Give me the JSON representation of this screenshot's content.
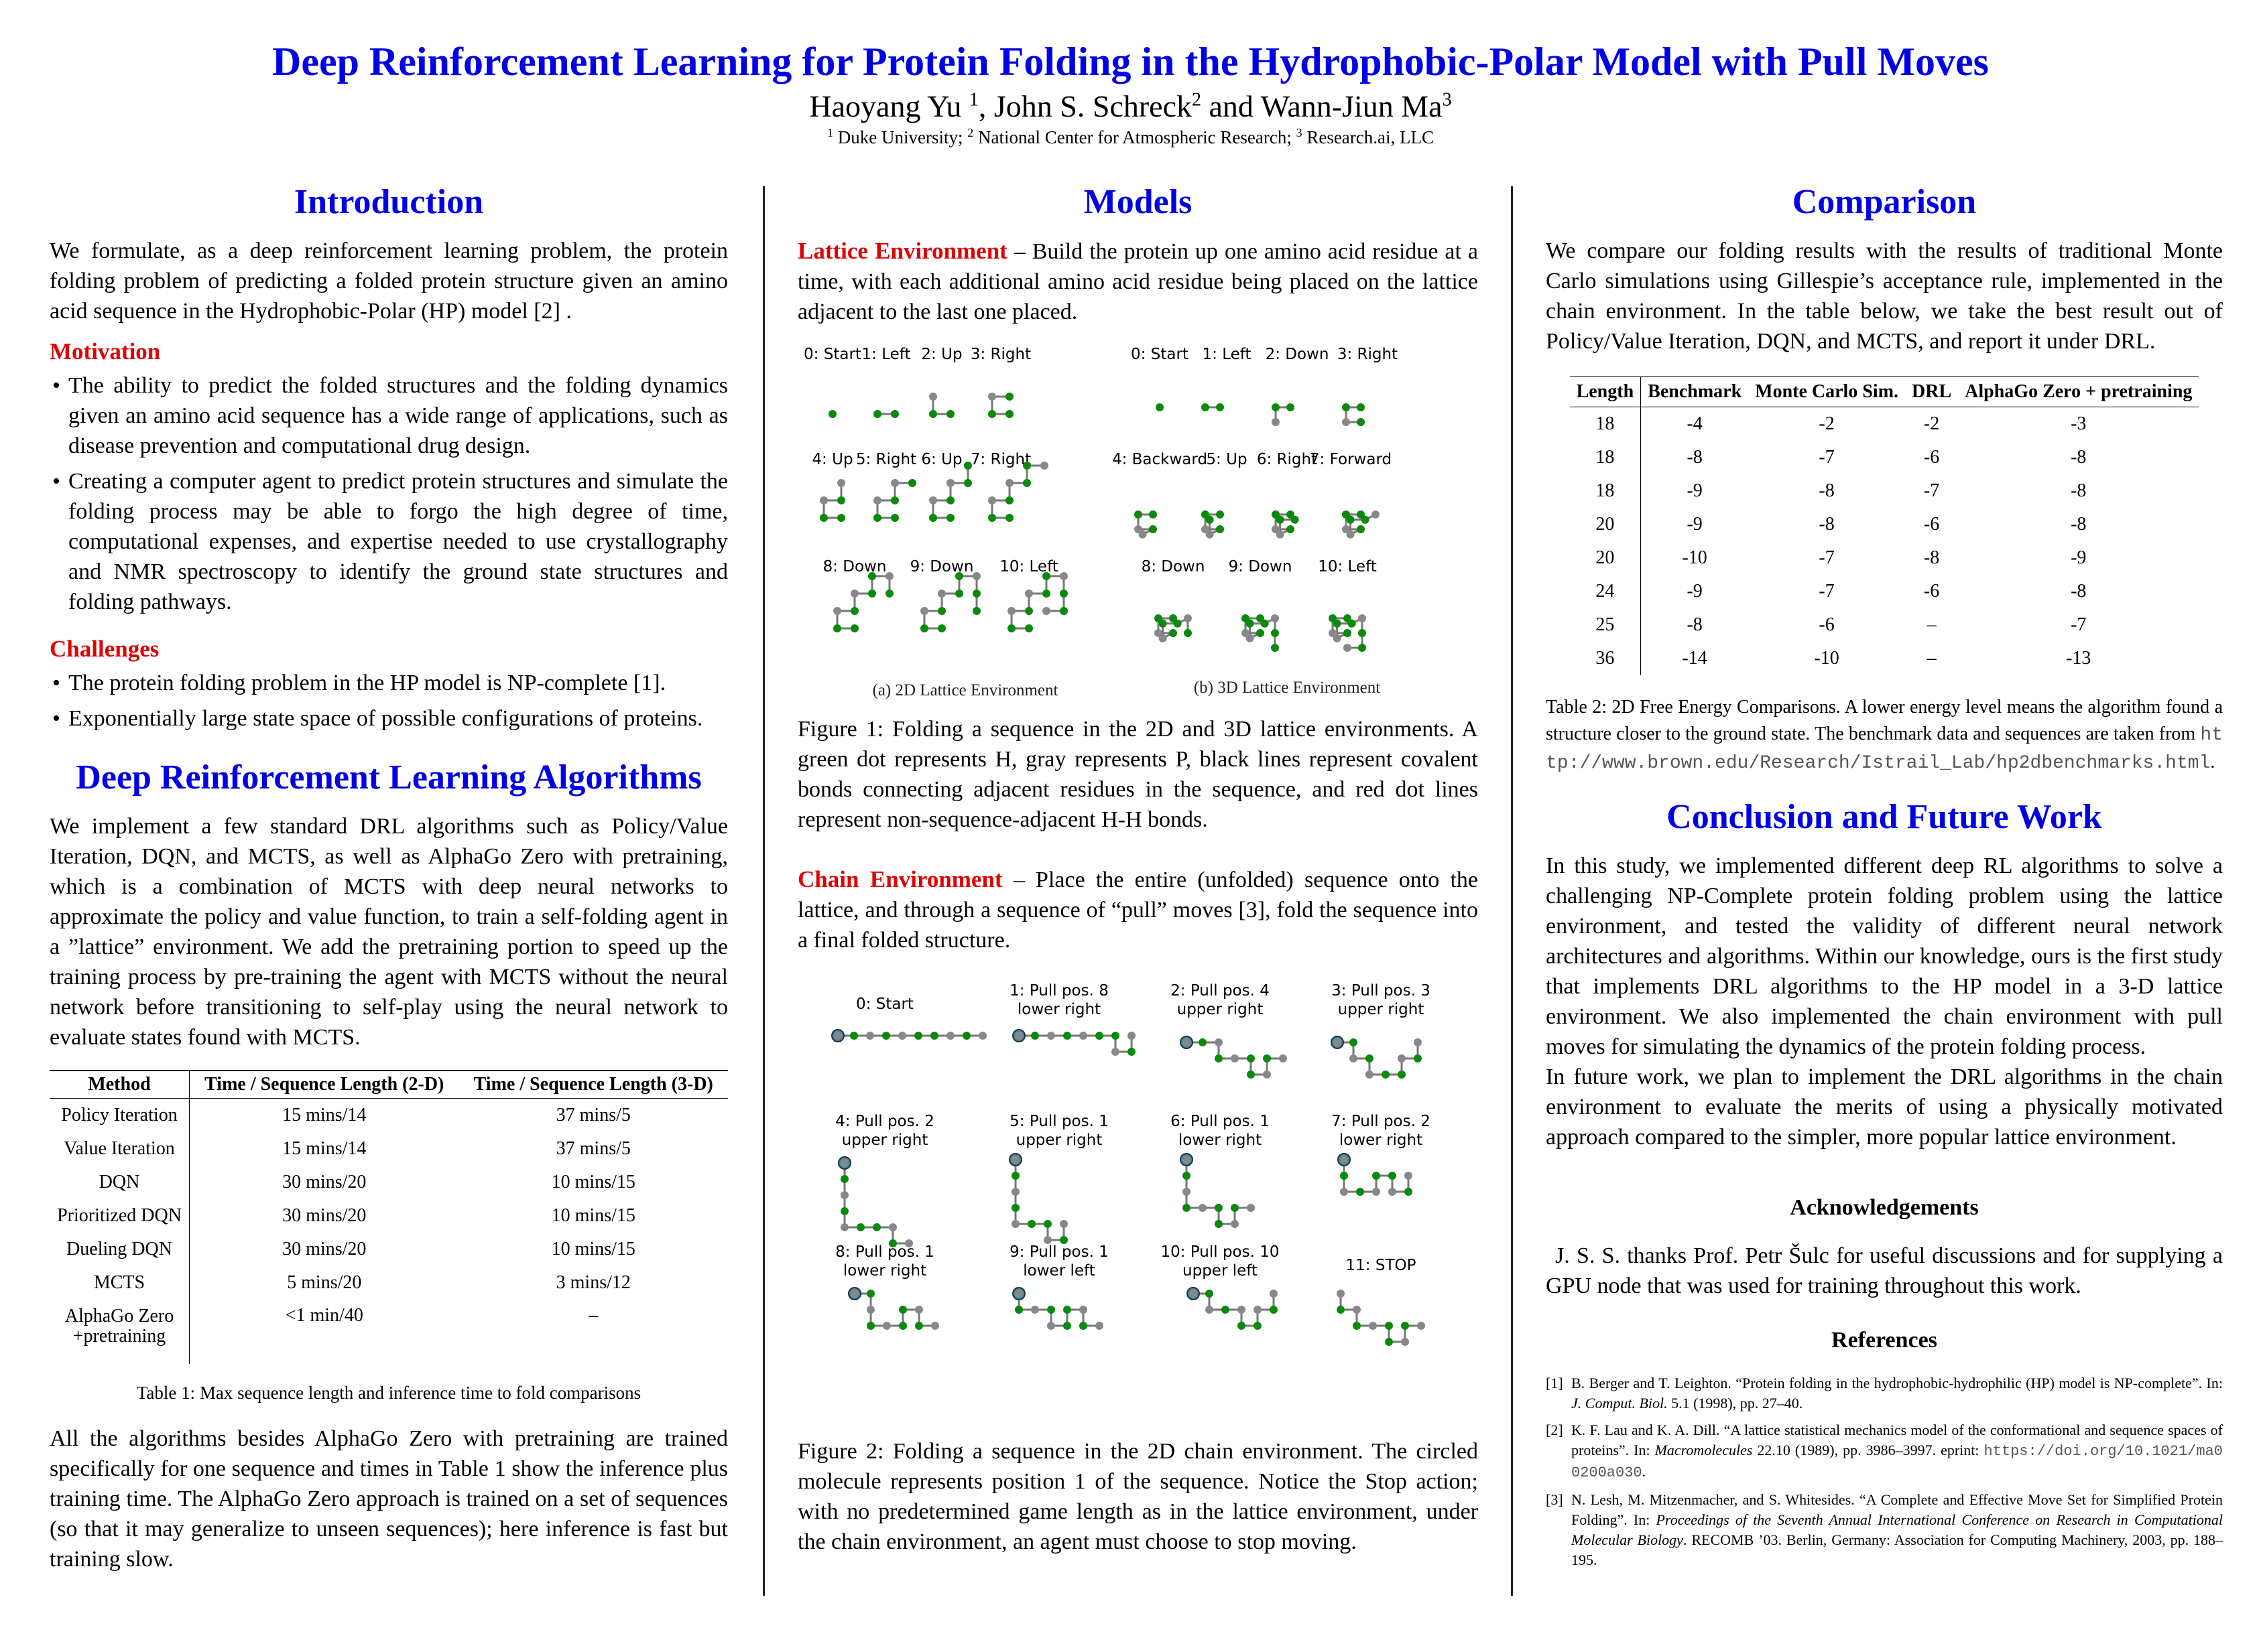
{
  "header": {
    "title": "Deep Reinforcement Learning for Protein Folding in the Hydrophobic-Polar Model with Pull Moves",
    "author1": "Haoyang Yu",
    "author2": "John S. Schreck",
    "author3": "Wann-Jiun Ma",
    "sup1": "1",
    "sup2": "2",
    "sup3": "3",
    "affil1": "Duke University;",
    "affil2": "National Center for Atmospheric Research;",
    "affil3": "Research.ai, LLC",
    "and": "and"
  },
  "intro": {
    "heading": "Introduction",
    "text": "We formulate, as a deep reinforcement learning problem, the protein folding problem of predicting a folded protein structure given an amino acid sequence in the Hydrophobic-Polar (HP) model [2] .",
    "motivation_heading": "Motivation",
    "motivation": [
      "The ability to predict the folded structures and the folding dynamics given an amino acid sequence has a wide range of applications, such as disease prevention and computational drug design.",
      "Creating a computer agent to predict protein structures and simulate the folding process may be able to forgo the high degree of time, computational expenses, and expertise needed to use crystallography and NMR spectroscopy to identify the ground state structures and folding pathways."
    ],
    "challenges_heading": "Challenges",
    "challenges": [
      "The protein folding problem in the HP model is NP-complete [1].",
      "Exponentially large state space of possible configurations of proteins."
    ]
  },
  "drl": {
    "heading": "Deep Reinforcement Learning Algorithms",
    "text": "We implement a few standard DRL algorithms such as Policy/Value Iteration, DQN, and MCTS, as well as AlphaGo Zero with pretraining, which is a combination of MCTS with deep neural networks to approximate the policy and value function, to train a self-folding agent in a ”lattice” environment. We add the pretraining portion to speed up the training process by pre-training the agent with MCTS without the neural network before transitioning to self-play using the neural network to evaluate states found with MCTS.",
    "table": {
      "headers": [
        "Method",
        "Time / Sequence Length (2-D)",
        "Time / Sequence Length (3-D)"
      ],
      "rows": [
        [
          "Policy Iteration",
          "15 mins/14",
          "37 mins/5"
        ],
        [
          "Value Iteration",
          "15 mins/14",
          "37 mins/5"
        ],
        [
          "DQN",
          "30 mins/20",
          "10 mins/15"
        ],
        [
          "Prioritized DQN",
          "30 mins/20",
          "10 mins/15"
        ],
        [
          "Dueling DQN",
          "30 mins/20",
          "10 mins/15"
        ],
        [
          "MCTS",
          "5 mins/20",
          "3 mins/12"
        ],
        [
          "AlphaGo Zero +pretraining",
          "<1 min/40",
          "–"
        ]
      ]
    },
    "table_caption": "Table 1: Max sequence length and inference time to fold comparisons",
    "text2": "All the algorithms besides AlphaGo Zero with pretraining are trained specifically for one sequence and times in Table 1 show the inference plus training time. The AlphaGo Zero approach is trained on a set of sequences (so that it may generalize to unseen sequences); here inference is fast but training slow."
  },
  "models": {
    "heading": "Models",
    "lattice_label": "Lattice Environment",
    "lattice_text": "–  Build the protein up one amino acid residue at a time, with each additional amino acid residue being placed on the lattice adjacent to the last one placed.",
    "fig1_labels_2d": [
      "0: Start",
      "1: Left",
      "2: Up",
      "3: Right",
      "4: Up",
      "5: Right",
      "6: Up",
      "7: Right",
      "8: Down",
      "9: Down",
      "10: Left"
    ],
    "fig1_labels_3d": [
      "0: Start",
      "1: Left",
      "2: Down",
      "3: Right",
      "4: Backward",
      "5: Up",
      "6: Right",
      "7: Forward",
      "8: Down",
      "9: Down",
      "10: Left"
    ],
    "fig1_sub_a": "(a) 2D Lattice Environment",
    "fig1_sub_b": "(b) 3D Lattice Environment",
    "fig1_caption": "Figure 1: Folding a sequence in the 2D and 3D lattice environments. A green dot represents H, gray represents P, black lines represent covalent bonds connecting adjacent residues in the sequence, and red dot lines represent non-sequence-adjacent H-H bonds.",
    "chain_label": "Chain Environment",
    "chain_text": "–  Place the entire (unfolded) sequence onto the lattice, and through a sequence of “pull” moves [3], fold the sequence into a final folded structure.",
    "fig2_labels": [
      [
        "0: Start"
      ],
      [
        "1: Pull pos. 8",
        "lower right"
      ],
      [
        "2: Pull pos. 4",
        "upper right"
      ],
      [
        "3: Pull pos. 3",
        "upper right"
      ],
      [
        "4: Pull pos. 2",
        "upper right"
      ],
      [
        "5: Pull pos. 1",
        "upper right"
      ],
      [
        "6: Pull pos. 1",
        "lower right"
      ],
      [
        "7: Pull pos. 2",
        "lower right"
      ],
      [
        "8: Pull pos. 1",
        "lower right"
      ],
      [
        "9: Pull pos. 1",
        "lower left"
      ],
      [
        "10: Pull pos. 10",
        "upper left"
      ],
      [
        "11: STOP"
      ]
    ],
    "fig2_caption": "Figure 2: Folding a sequence in the 2D chain environment. The circled molecule represents position 1 of the sequence. Notice the Stop action; with no predetermined game length as in the lattice environment, under the chain environment, an agent must choose to stop moving."
  },
  "comparison": {
    "heading": "Comparison",
    "text": "We compare our folding results with the results of traditional Monte Carlo simulations using Gillespie’s acceptance rule, implemented in the chain environment. In the table below, we take the best result out of Policy/Value Iteration, DQN, and MCTS, and report it under DRL.",
    "table": {
      "headers": [
        "Length",
        "Benchmark",
        "Monte Carlo Sim.",
        "DRL",
        "AlphaGo Zero + pretraining"
      ],
      "rows": [
        [
          "18",
          "-4",
          "-2",
          "-2",
          "-3"
        ],
        [
          "18",
          "-8",
          "-7",
          "-6",
          "-8"
        ],
        [
          "18",
          "-9",
          "-8",
          "-7",
          "-8"
        ],
        [
          "20",
          "-9",
          "-8",
          "-6",
          "-8"
        ],
        [
          "20",
          "-10",
          "-7",
          "-8",
          "-9"
        ],
        [
          "24",
          "-9",
          "-7",
          "-6",
          "-8"
        ],
        [
          "25",
          "-8",
          "-6",
          "–",
          "-7"
        ],
        [
          "36",
          "-14",
          "-10",
          "–",
          "-13"
        ]
      ]
    },
    "table_caption": "Table 2: 2D Free Energy Comparisons. A lower energy level means the algorithm found a structure closer to the ground state. The benchmark data and sequences are taken from",
    "table_url": "http://www.brown.edu/Research/Istrail_Lab/hp2dbenchmarks.html",
    "table_caption_end": "."
  },
  "conclusion": {
    "heading": "Conclusion and Future Work",
    "text1": "In this study, we implemented different deep RL algorithms to solve a challenging NP-Complete protein folding problem using the lattice environment, and tested the validity of different neural network architectures and algorithms. Within our knowledge, ours is the first study that implements DRL algorithms to the HP model in a 3-D lattice environment. We also implemented the chain environment with pull moves for simulating the dynamics of the protein folding process.",
    "text2": "In future work, we plan to implement the DRL algorithms in the chain environment to evaluate the merits of using a physically motivated approach compared to the simpler, more popular lattice environment."
  },
  "ack": {
    "heading": "Acknowledgements",
    "text": "J. S. S. thanks Prof. Petr Šulc for useful discussions and for supplying a GPU node that was used for training throughout this work."
  },
  "refs": {
    "heading": "References",
    "items": [
      {
        "num": "[1]",
        "a": "B. Berger and T. Leighton. “Protein folding in the hydrophobic-hydrophilic (HP) model is NP-complete”. In: ",
        "i": "J. Comput. Biol.",
        "b": " 5.1 (1998), pp. 27–40."
      },
      {
        "num": "[2]",
        "a": "K. F. Lau and K. A. Dill. “A lattice statistical mechanics model of the conformational and sequence spaces of proteins”. In: ",
        "i": "Macromolecules",
        "b": " 22.10 (1989), pp. 3986–3997. eprint: ",
        "url": "https://doi.org/10.1021/ma00200a030",
        "c": "."
      },
      {
        "num": "[3]",
        "a": "N. Lesh, M. Mitzenmacher, and S. Whitesides. “A Complete and Effective Move Set for Simplified Protein Folding”. In: ",
        "i": "Proceedings of the Seventh Annual International Conference on Research in Computational Molecular Biology",
        "b": ". RECOMB ’03. Berlin, Germany: Association for Computing Machinery, 2003, pp. 188–195."
      }
    ]
  }
}
